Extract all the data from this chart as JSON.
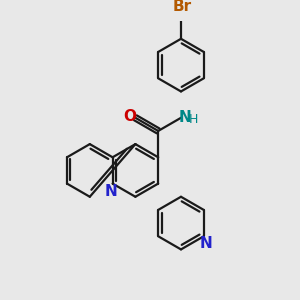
{
  "bg_color": "#e8e8e8",
  "bond_color": "#1a1a1a",
  "N_color": "#2222cc",
  "O_color": "#cc0000",
  "Br_color": "#b35900",
  "NH_color": "#008888",
  "lw": 1.6,
  "fs": 10,
  "fig_w": 3.0,
  "fig_h": 3.0,
  "dpi": 100,
  "xlim": [
    0,
    10
  ],
  "ylim": [
    0,
    10
  ]
}
